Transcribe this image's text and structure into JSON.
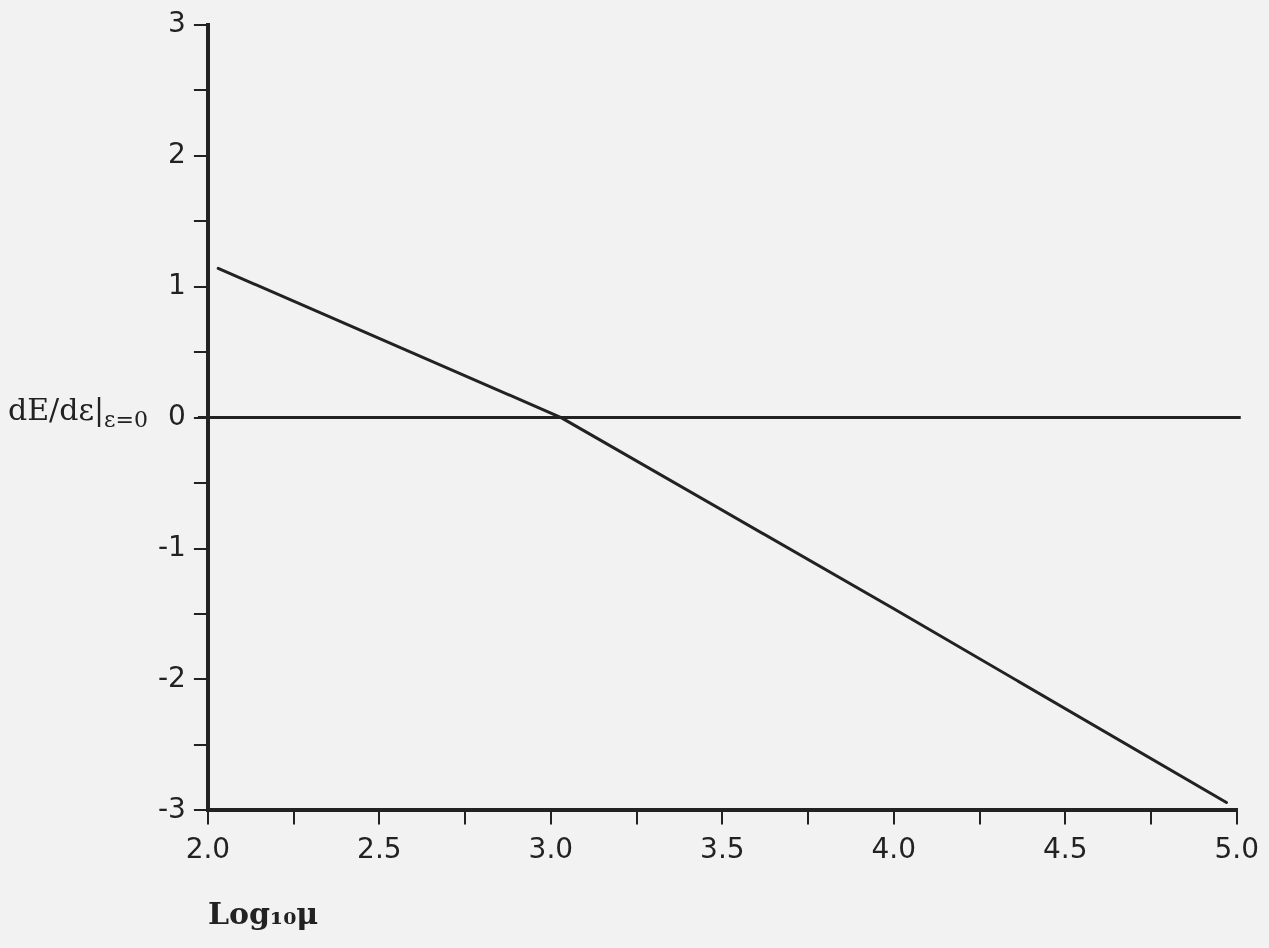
{
  "chart_data": {
    "type": "line",
    "xlabel": "Log₁₀μ",
    "ylabel": "dE/dε|$_{ε=0}$",
    "x": [
      2.03,
      3.03,
      4.0,
      4.97
    ],
    "series": [
      {
        "color": "#222222",
        "values": [
          1.14,
          0,
          -1.46,
          -2.94
        ]
      }
    ],
    "xlim": [
      2.0,
      5.0
    ],
    "xticks": [
      {
        "value": 2.0,
        "label": "2.0"
      },
      {
        "value": 2.25,
        "label": null
      },
      {
        "value": 2.5,
        "label": "2.5"
      },
      {
        "value": 2.75,
        "label": null
      },
      {
        "value": 3.0,
        "label": "3.0"
      },
      {
        "value": 3.25,
        "label": null
      },
      {
        "value": 3.5,
        "label": "3.5"
      },
      {
        "value": 3.75,
        "label": null
      },
      {
        "value": 4.0,
        "label": "4.0"
      },
      {
        "value": 4.25,
        "label": null
      },
      {
        "value": 4.5,
        "label": "4.5"
      },
      {
        "value": 4.75,
        "label": null
      },
      {
        "value": 5.0,
        "label": "5.0"
      }
    ],
    "ylim": [
      -3,
      3
    ],
    "yticks": [
      -3,
      {
        "value": -2.5,
        "label": null
      },
      -2,
      {
        "value": -1.5,
        "label": null
      },
      -1,
      {
        "value": -0.5,
        "label": null
      },
      0,
      {
        "value": 0.5,
        "label": null
      },
      1,
      {
        "value": 1.5,
        "label": null
      },
      2,
      {
        "value": 2.5,
        "label": null
      },
      3
    ],
    "ref_lines": [
      {
        "axis": "y",
        "value": 0,
        "color": "#222222"
      }
    ],
    "grid": false,
    "legend": false,
    "marker": "none",
    "line_style": "solid"
  }
}
